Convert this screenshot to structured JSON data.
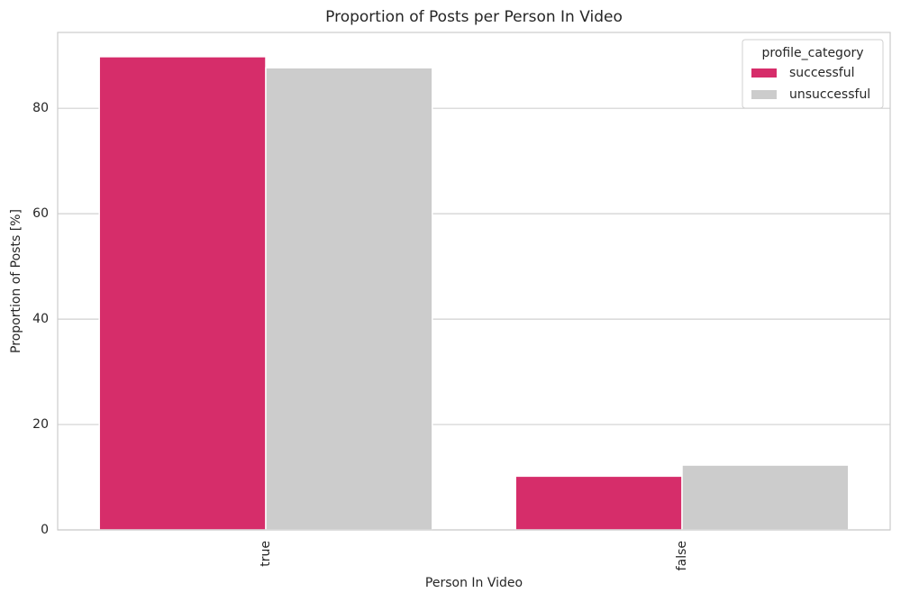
{
  "chart_data": {
    "type": "bar",
    "title": "Proportion of Posts per Person In Video",
    "x_label": "Person In Video",
    "y_label": "Proportion of Posts [%]",
    "categories": [
      "true",
      "false"
    ],
    "series": [
      {
        "name": "successful",
        "color": "#d62d6a",
        "values": [
          89.8,
          10.2
        ]
      },
      {
        "name": "unsuccessful",
        "color": "#cccccc",
        "values": [
          87.7,
          12.3
        ]
      }
    ],
    "legend_title": "profile_category",
    "legend_position": "upper right",
    "ylim": [
      0,
      94.4
    ],
    "yticks": [
      0,
      20,
      40,
      60,
      80
    ],
    "grid": true
  }
}
